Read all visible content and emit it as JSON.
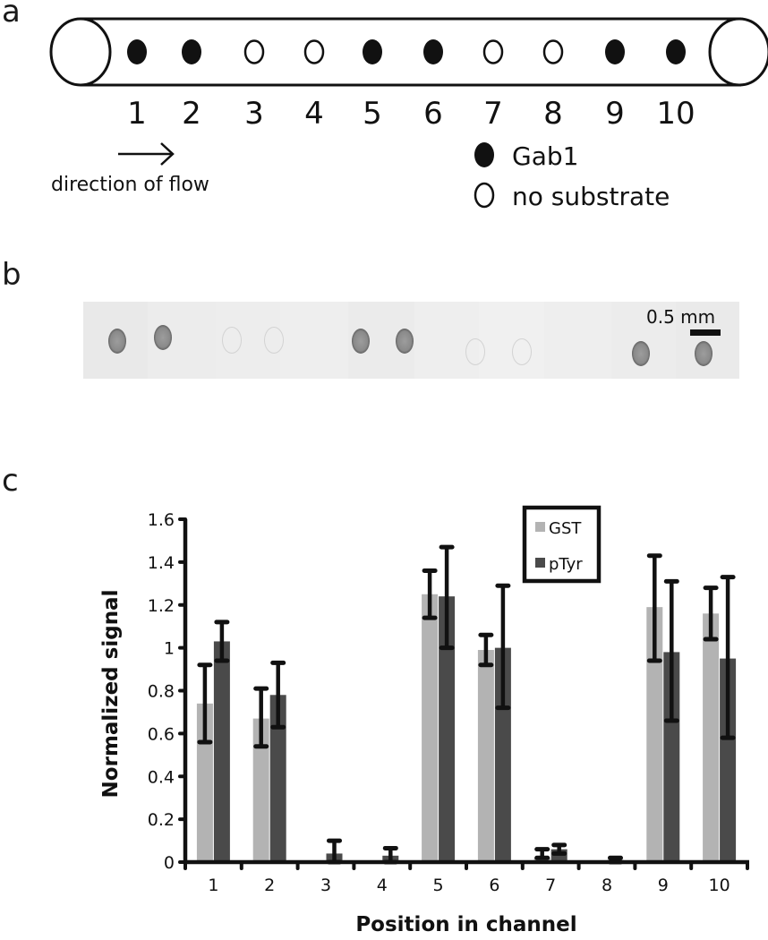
{
  "panels": {
    "a": {
      "label": "a",
      "positions": [
        "1",
        "2",
        "3",
        "4",
        "5",
        "6",
        "7",
        "8",
        "9",
        "10"
      ],
      "spot_types": [
        "filled",
        "filled",
        "empty",
        "empty",
        "filled",
        "filled",
        "empty",
        "empty",
        "filled",
        "filled"
      ],
      "flow_label": "direction of flow",
      "legend": [
        {
          "type": "filled",
          "label": "Gab1"
        },
        {
          "type": "empty",
          "label": "no substrate"
        }
      ]
    },
    "b": {
      "label": "b",
      "scale_bar_label": "0.5 mm"
    },
    "c": {
      "label": "c"
    }
  },
  "chart_data": {
    "type": "bar",
    "title": "",
    "xlabel": "Position in channel",
    "ylabel": "Normalized signal",
    "categories": [
      "1",
      "2",
      "3",
      "4",
      "5",
      "6",
      "7",
      "8",
      "9",
      "10"
    ],
    "ylim": [
      0,
      1.6
    ],
    "yticks": [
      "0",
      "0.2",
      "0.4",
      "0.6",
      "0.8",
      "1",
      "1.2",
      "1.4",
      "1.6"
    ],
    "grid": false,
    "legend_position": "top-center",
    "series": [
      {
        "name": "GST",
        "color": "#b3b3b3",
        "values": [
          0.74,
          0.67,
          0.005,
          0.005,
          1.25,
          0.99,
          0.02,
          0.005,
          1.19,
          1.16
        ],
        "error_low": [
          0.56,
          0.54,
          0.005,
          0.005,
          1.14,
          0.92,
          0.02,
          0.005,
          0.94,
          1.04
        ],
        "error_high": [
          0.92,
          0.81,
          0.005,
          0.005,
          1.36,
          1.06,
          0.06,
          0.005,
          1.43,
          1.28
        ]
      },
      {
        "name": "pTyr",
        "color": "#4a4a4a",
        "values": [
          1.03,
          0.78,
          0.04,
          0.03,
          1.24,
          1.0,
          0.06,
          0.01,
          0.98,
          0.95
        ],
        "error_low": [
          0.94,
          0.63,
          0.0,
          0.0,
          1.0,
          0.72,
          0.04,
          0.0,
          0.66,
          0.58
        ],
        "error_high": [
          1.12,
          0.93,
          0.1,
          0.065,
          1.47,
          1.29,
          0.08,
          0.02,
          1.31,
          1.33
        ]
      }
    ]
  }
}
